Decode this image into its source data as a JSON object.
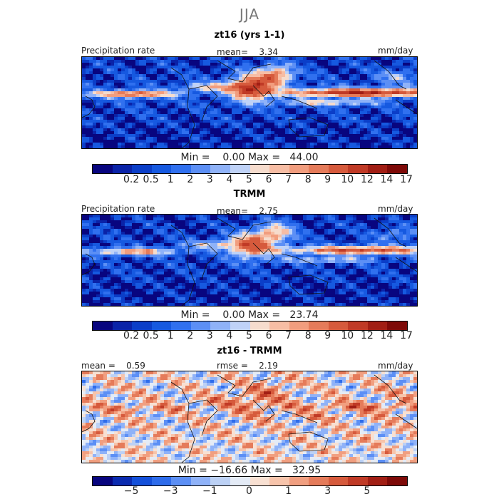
{
  "season": "JJA",
  "panels": [
    {
      "title": "zt16 (yrs 1-1)",
      "left_label": "Precipitation rate",
      "mid_label": "mean=    3.34",
      "right_label": "mm/day",
      "minmax": "Min =    0.00 Max =   44.00",
      "field": "model",
      "colorbar": "abs"
    },
    {
      "title": "TRMM",
      "left_label": "Precipitation rate",
      "mid_label": "mean=    2.75",
      "right_label": "mm/day",
      "minmax": "Min =    0.00 Max =   23.74",
      "field": "obs",
      "colorbar": "abs"
    },
    {
      "title": "zt16 - TRMM",
      "left_label": "mean =    0.59",
      "mid_label": "rmse =    2.19",
      "right_label": "mm/day",
      "minmax": "Min = −16.66 Max =   32.95",
      "field": "diff",
      "colorbar": "diff"
    }
  ],
  "colorbars": {
    "abs": {
      "colors": [
        "#08057f",
        "#0a23a8",
        "#0b3ec8",
        "#1659e0",
        "#3070ef",
        "#5c8ff5",
        "#8fb2f8",
        "#bfd2f7",
        "#f6dccd",
        "#f7bda4",
        "#f19d7e",
        "#e57b5a",
        "#d65a3c",
        "#c03a26",
        "#a11e14",
        "#7e0a08"
      ],
      "labels": [
        {
          "text": "0.2",
          "at": 2
        },
        {
          "text": "0.5",
          "at": 3
        },
        {
          "text": "1",
          "at": 4
        },
        {
          "text": "2",
          "at": 5
        },
        {
          "text": "3",
          "at": 6
        },
        {
          "text": "4",
          "at": 7
        },
        {
          "text": "5",
          "at": 8
        },
        {
          "text": "6",
          "at": 9
        },
        {
          "text": "7",
          "at": 10
        },
        {
          "text": "8",
          "at": 11
        },
        {
          "text": "9",
          "at": 12
        },
        {
          "text": "10",
          "at": 13
        },
        {
          "text": "12",
          "at": 14
        },
        {
          "text": "14",
          "at": 15
        },
        {
          "text": "17",
          "at": 16
        }
      ]
    },
    "diff": {
      "colors": [
        "#08057f",
        "#0b2bb0",
        "#1450da",
        "#2e6ceb",
        "#5c8ff5",
        "#8fb2f8",
        "#bcd1f5",
        "#e4ebf6",
        "#f8e0d2",
        "#f7c4ab",
        "#f19f80",
        "#e57b5a",
        "#d65a3c",
        "#c03a26",
        "#a11e14",
        "#7e0a08"
      ],
      "labels": [
        {
          "text": "−5",
          "at": 2
        },
        {
          "text": "−3",
          "at": 4
        },
        {
          "text": "−1",
          "at": 6
        },
        {
          "text": "0",
          "at": 8
        },
        {
          "text": "1",
          "at": 10
        },
        {
          "text": "3",
          "at": 12
        },
        {
          "text": "5",
          "at": 14
        }
      ]
    }
  }
}
